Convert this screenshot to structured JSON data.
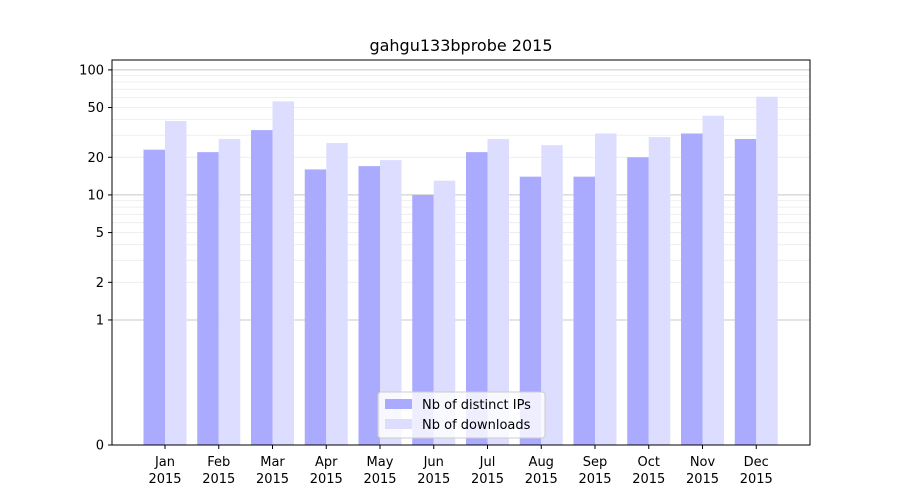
{
  "chart_data": {
    "type": "bar",
    "title": "gahgu133bprobe 2015",
    "xlabel": "",
    "ylabel": "",
    "yscale": "symlog",
    "ylim": [
      0,
      120
    ],
    "yticks": [
      {
        "value": 0,
        "label": "0"
      },
      {
        "value": 1,
        "label": "1"
      },
      {
        "value": 2,
        "label": "2"
      },
      {
        "value": 5,
        "label": "5"
      },
      {
        "value": 10,
        "label": "10"
      },
      {
        "value": 20,
        "label": "20"
      },
      {
        "value": 50,
        "label": "50"
      },
      {
        "value": 100,
        "label": "100"
      }
    ],
    "categories": [
      {
        "month": "Jan",
        "year": "2015"
      },
      {
        "month": "Feb",
        "year": "2015"
      },
      {
        "month": "Mar",
        "year": "2015"
      },
      {
        "month": "Apr",
        "year": "2015"
      },
      {
        "month": "May",
        "year": "2015"
      },
      {
        "month": "Jun",
        "year": "2015"
      },
      {
        "month": "Jul",
        "year": "2015"
      },
      {
        "month": "Aug",
        "year": "2015"
      },
      {
        "month": "Sep",
        "year": "2015"
      },
      {
        "month": "Oct",
        "year": "2015"
      },
      {
        "month": "Nov",
        "year": "2015"
      },
      {
        "month": "Dec",
        "year": "2015"
      }
    ],
    "series": [
      {
        "name": "Nb of distinct IPs",
        "color": "#aaaaff",
        "values": [
          23,
          22,
          33,
          16,
          17,
          10,
          22,
          14,
          14,
          20,
          31,
          28
        ]
      },
      {
        "name": "Nb of downloads",
        "color": "#ddddff",
        "values": [
          39,
          28,
          56,
          26,
          19,
          13,
          28,
          25,
          31,
          29,
          43,
          61
        ]
      }
    ],
    "grid": true,
    "legend_position": "bottom-center"
  }
}
